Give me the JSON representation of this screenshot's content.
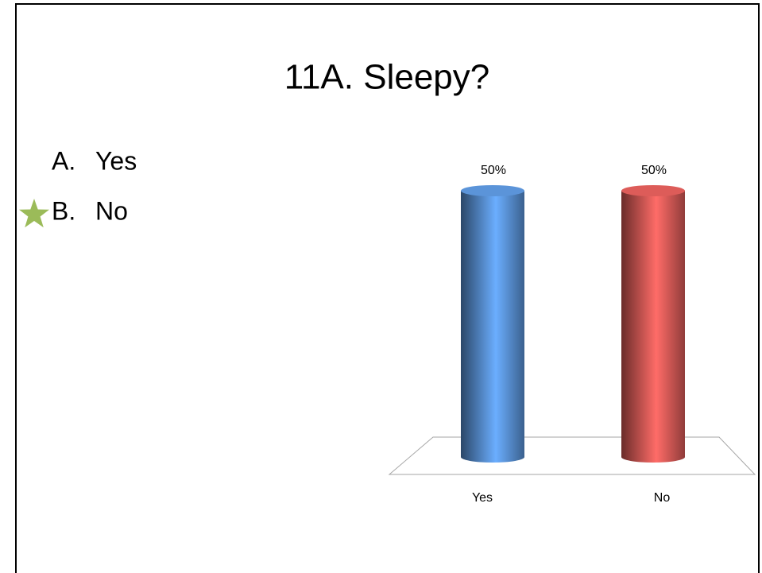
{
  "title": "11A. Sleepy?",
  "options": [
    {
      "letter": "A.",
      "text": "Yes",
      "correct": false
    },
    {
      "letter": "B.",
      "text": "No",
      "correct": true
    }
  ],
  "chart_data": {
    "type": "bar3d",
    "categories": [
      "Yes",
      "No"
    ],
    "values": [
      50,
      50
    ],
    "value_labels": [
      "50%",
      "50%"
    ],
    "colors": [
      "#4f81bd",
      "#c0504d"
    ]
  }
}
